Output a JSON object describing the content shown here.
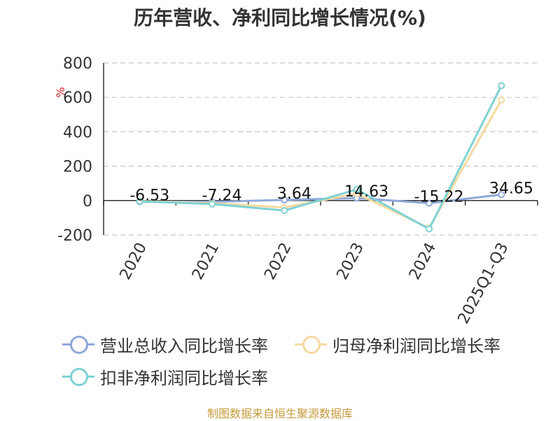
{
  "title": "历年营收、净利同比增长情况(%)",
  "footer": "制图数据来自恒生聚源数据库",
  "chart_data": {
    "type": "line",
    "title": "历年营收、净利同比增长情况(%)",
    "ylabel": "%",
    "xlabel": "",
    "categories": [
      "2020",
      "2021",
      "2022",
      "2023",
      "2024",
      "2025Q1-Q3"
    ],
    "ylim": [
      -200,
      800
    ],
    "yticks": [
      -200,
      0,
      200,
      400,
      600,
      800
    ],
    "grid": true,
    "legend_position": "bottom",
    "series": [
      {
        "name": "营业总收入同比增长率",
        "color": "#8fa8d8",
        "values": [
          -6.53,
          -7.24,
          3.64,
          14.63,
          -15.22,
          34.65
        ],
        "labels": [
          "-6.53",
          "-7.24",
          "3.64",
          "14.63",
          "-15.22",
          "34.65"
        ]
      },
      {
        "name": "归母净利润同比增长率",
        "color": "#f5d9a0",
        "values": [
          -3,
          -15,
          -40,
          40,
          -160,
          585
        ]
      },
      {
        "name": "扣非净利润同比增长率",
        "color": "#7fd1d4",
        "values": [
          -5,
          -20,
          -58,
          65,
          -165,
          668
        ]
      }
    ]
  }
}
